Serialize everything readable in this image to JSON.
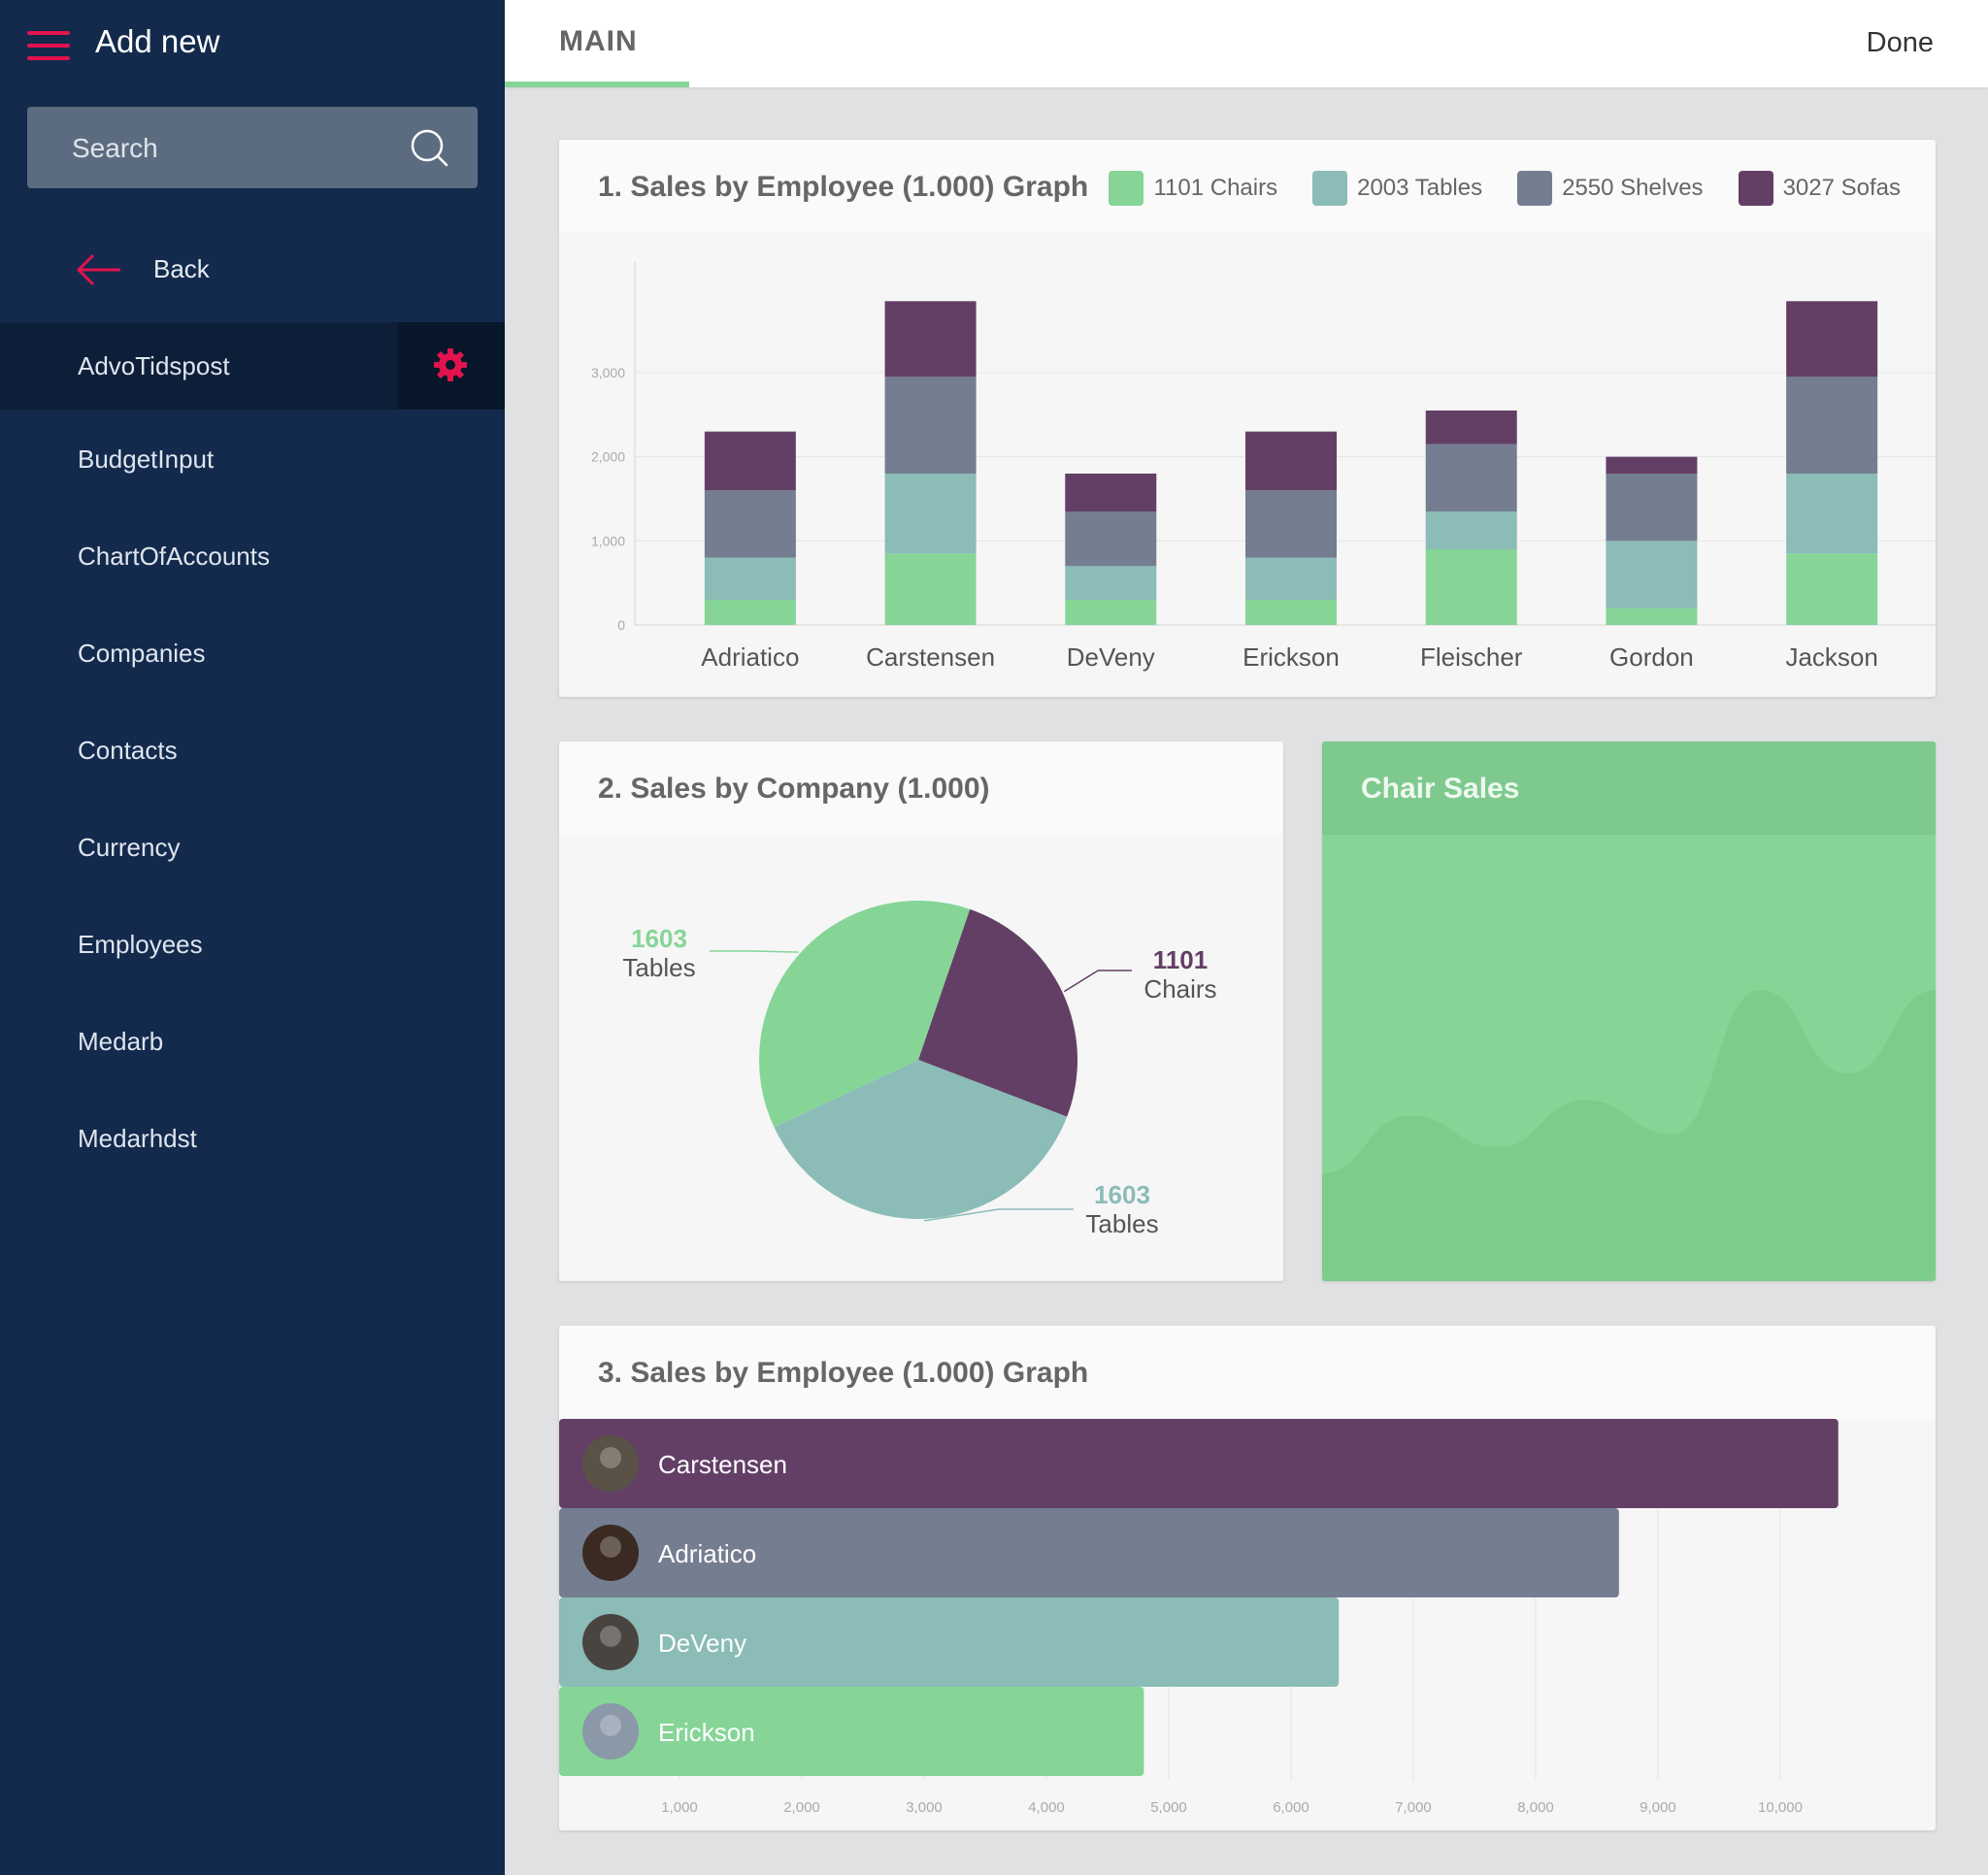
{
  "sidebar": {
    "title": "Add new",
    "search_placeholder": "Search",
    "back_label": "Back",
    "items": [
      {
        "label": "AdvoTidspost",
        "active": true
      },
      {
        "label": "BudgetInput"
      },
      {
        "label": "ChartOfAccounts"
      },
      {
        "label": "Companies"
      },
      {
        "label": "Contacts"
      },
      {
        "label": "Currency"
      },
      {
        "label": "Employees"
      },
      {
        "label": "Medarb"
      },
      {
        "label": "Medarhdst"
      }
    ]
  },
  "header": {
    "tab": "MAIN",
    "done": "Done"
  },
  "colors": {
    "chairs": "#86d597",
    "tables": "#8bbcb7",
    "shelves": "#757d91",
    "sofas": "#633f66",
    "accent": "#e2134f",
    "sidebar": "#132a4c"
  },
  "cards": {
    "card1_title": "1. Sales by Employee (1.000) Graph",
    "card2_title": "2. Sales by Company (1.000)",
    "card3_title": "Chair Sales",
    "card4_title": "3. Sales by Employee (1.000) Graph"
  },
  "legend": [
    {
      "label": "1101 Chairs",
      "color": "#86d597"
    },
    {
      "label": "2003 Tables",
      "color": "#8bbcb7"
    },
    {
      "label": "2550 Shelves",
      "color": "#757d91"
    },
    {
      "label": "3027 Sofas",
      "color": "#633f66"
    }
  ],
  "chart_data": [
    {
      "type": "bar",
      "stacked": true,
      "title": "1. Sales by Employee (1.000) Graph",
      "categories": [
        "Adriatico",
        "Carstensen",
        "DeVeny",
        "Erickson",
        "Fleischer",
        "Gordon",
        "Jackson"
      ],
      "series": [
        {
          "name": "1101 Chairs",
          "values": [
            300,
            850,
            300,
            300,
            900,
            200,
            850
          ]
        },
        {
          "name": "2003 Tables",
          "values": [
            500,
            950,
            400,
            500,
            450,
            800,
            950
          ]
        },
        {
          "name": "2550 Shelves",
          "values": [
            800,
            1150,
            650,
            800,
            800,
            800,
            1150
          ]
        },
        {
          "name": "3027 Sofas",
          "values": [
            700,
            900,
            450,
            700,
            400,
            200,
            900
          ]
        }
      ],
      "yticks": [
        "0",
        "1,000",
        "2,000",
        "3,000"
      ],
      "ylim": [
        0,
        4200
      ],
      "grid": true,
      "legend": "top-right"
    },
    {
      "type": "pie",
      "title": "2. Sales by Company (1.000)",
      "slices": [
        {
          "value": 1101,
          "label": "Chairs",
          "color": "#633f66"
        },
        {
          "value": 1603,
          "label": "Tables",
          "color": "#8bbcb7"
        },
        {
          "value": 1603,
          "label": "Tables",
          "color": "#86d597"
        }
      ]
    },
    {
      "type": "area",
      "title": "Chair Sales",
      "values": [
        0.3,
        0.52,
        0.4,
        0.58,
        0.45,
        1.0,
        0.68,
        1.0
      ]
    },
    {
      "type": "bar",
      "orientation": "horizontal",
      "title": "3. Sales by Employee (1.000) Graph",
      "categories": [
        "Carstensen",
        "Adriatico",
        "DeVeny",
        "Erickson"
      ],
      "values": [
        10500,
        8700,
        6400,
        4800
      ],
      "colors": [
        "#633f66",
        "#757d91",
        "#8bbcb7",
        "#86d597"
      ],
      "xticks": [
        "1,000",
        "2,000",
        "3,000",
        "4,000",
        "5,000",
        "6,000",
        "7,000",
        "8,000",
        "9,000",
        "10,000"
      ],
      "xlim": [
        0,
        11000
      ]
    }
  ]
}
